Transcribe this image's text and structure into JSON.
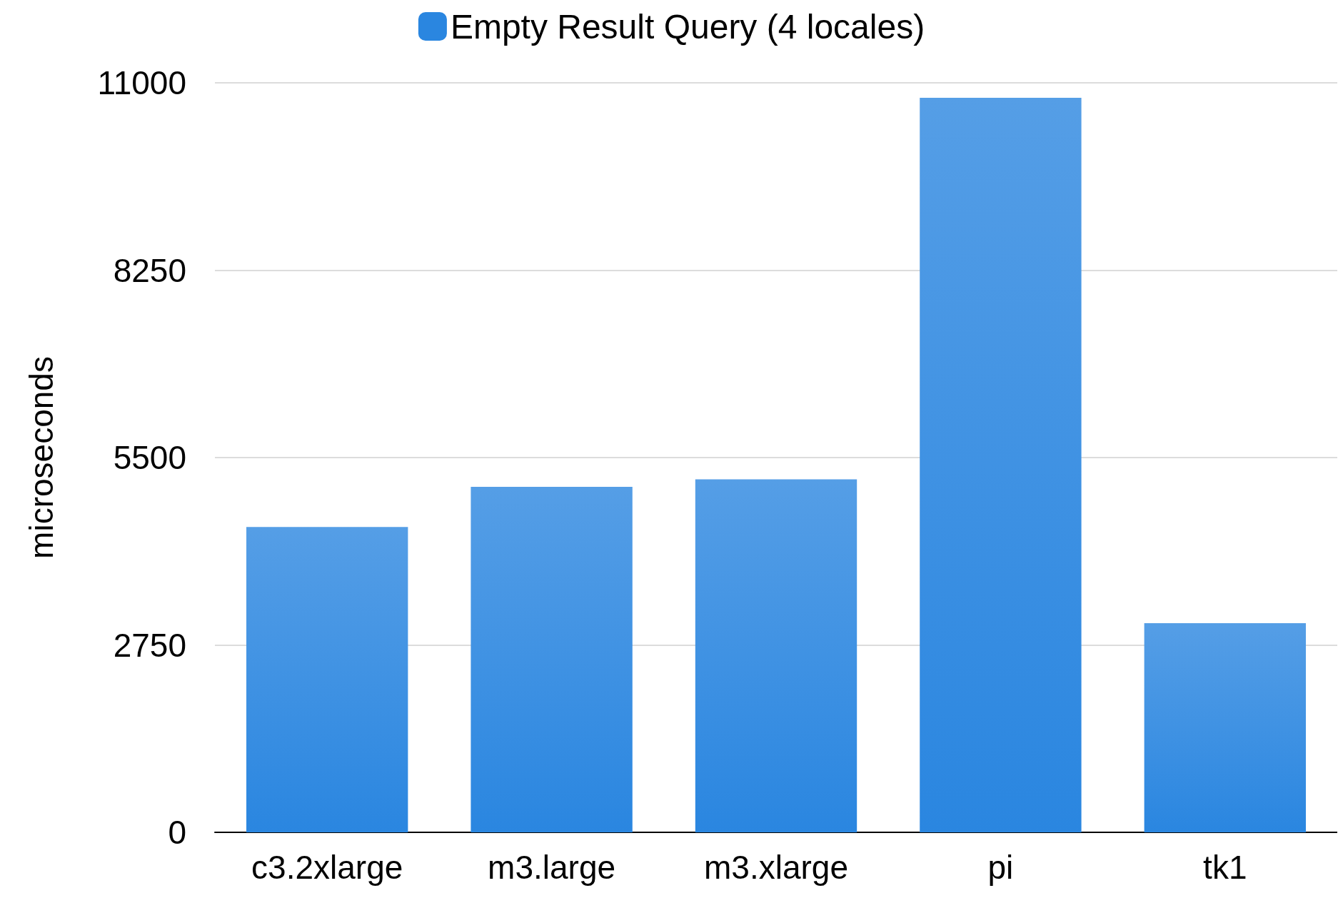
{
  "chart_data": {
    "type": "bar",
    "ylabel": "microseconds",
    "categories": [
      "c3.2xlarge",
      "m3.large",
      "m3.xlarge",
      "pi",
      "tk1"
    ],
    "series": [
      {
        "name": "Empty Result Query (4 locales)",
        "color": "#2a86e0",
        "values": [
          4480,
          5070,
          5180,
          10780,
          3070
        ]
      }
    ],
    "ylim": [
      0,
      11000
    ],
    "yticks": [
      0,
      2750,
      5500,
      8250,
      11000
    ],
    "grid": "y",
    "legend": "top"
  }
}
